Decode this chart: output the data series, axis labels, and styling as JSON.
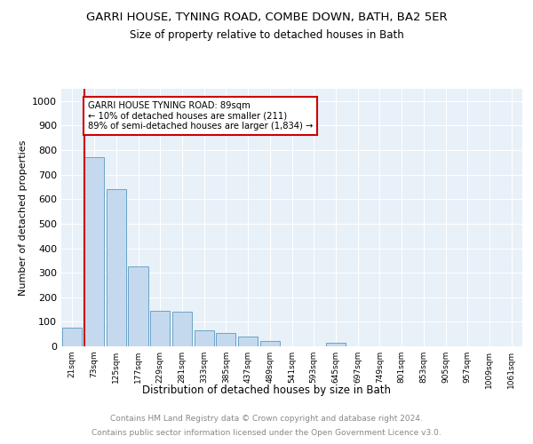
{
  "title": "GARRI HOUSE, TYNING ROAD, COMBE DOWN, BATH, BA2 5ER",
  "subtitle": "Size of property relative to detached houses in Bath",
  "xlabel": "Distribution of detached houses by size in Bath",
  "ylabel": "Number of detached properties",
  "categories": [
    "21sqm",
    "73sqm",
    "125sqm",
    "177sqm",
    "229sqm",
    "281sqm",
    "333sqm",
    "385sqm",
    "437sqm",
    "489sqm",
    "541sqm",
    "593sqm",
    "645sqm",
    "697sqm",
    "749sqm",
    "801sqm",
    "853sqm",
    "905sqm",
    "957sqm",
    "1009sqm",
    "1061sqm"
  ],
  "values": [
    75,
    770,
    640,
    325,
    145,
    140,
    65,
    55,
    40,
    20,
    0,
    0,
    15,
    0,
    0,
    0,
    0,
    0,
    0,
    0,
    0
  ],
  "bar_color": "#c5d9ee",
  "bar_edge_color": "#6aa3c8",
  "annotation_text_line1": "GARRI HOUSE TYNING ROAD: 89sqm",
  "annotation_text_line2": "← 10% of detached houses are smaller (211)",
  "annotation_text_line3": "89% of semi-detached houses are larger (1,834) →",
  "vline_color": "#cc0000",
  "annotation_box_edge_color": "#cc0000",
  "ylim": [
    0,
    1050
  ],
  "yticks": [
    0,
    100,
    200,
    300,
    400,
    500,
    600,
    700,
    800,
    900,
    1000
  ],
  "background_color": "#e8f0f8",
  "footer_line1": "Contains HM Land Registry data © Crown copyright and database right 2024.",
  "footer_line2": "Contains public sector information licensed under the Open Government Licence v3.0."
}
